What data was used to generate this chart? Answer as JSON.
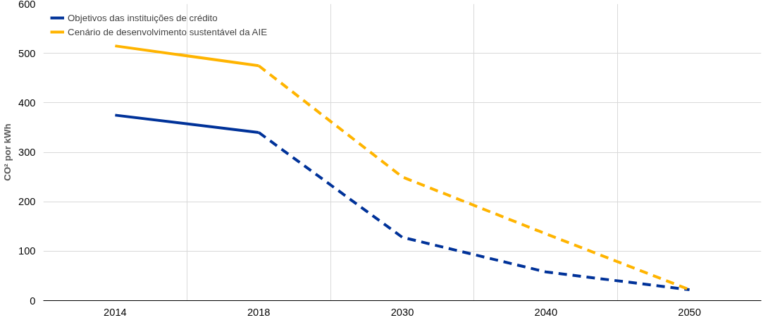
{
  "chart_data": {
    "type": "line",
    "ylabel": "CO² por kWh",
    "categories": [
      "2014",
      "2018",
      "2030",
      "2040",
      "2050"
    ],
    "series": [
      {
        "name": "Objetivos das instituições de crédito",
        "color": "#003299",
        "values": [
          375,
          340,
          null,
          null,
          null
        ],
        "line_style": "solid"
      },
      {
        "color": "#003299",
        "values": [
          null,
          340,
          128,
          58,
          22
        ],
        "line_style": "dashed"
      },
      {
        "name": "Cenário de desenvolvimento sustentável da AIE",
        "color": "#ffb400",
        "values": [
          515,
          475,
          null,
          null,
          null
        ],
        "line_style": "solid"
      },
      {
        "color": "#ffb400",
        "values": [
          null,
          475,
          250,
          135,
          22
        ],
        "line_style": "dashed"
      }
    ],
    "ylim": [
      0,
      600
    ],
    "yticks": [
      0,
      100,
      200,
      300,
      400,
      500,
      600
    ],
    "grid": true,
    "legend": "top left",
    "marker": "none"
  }
}
